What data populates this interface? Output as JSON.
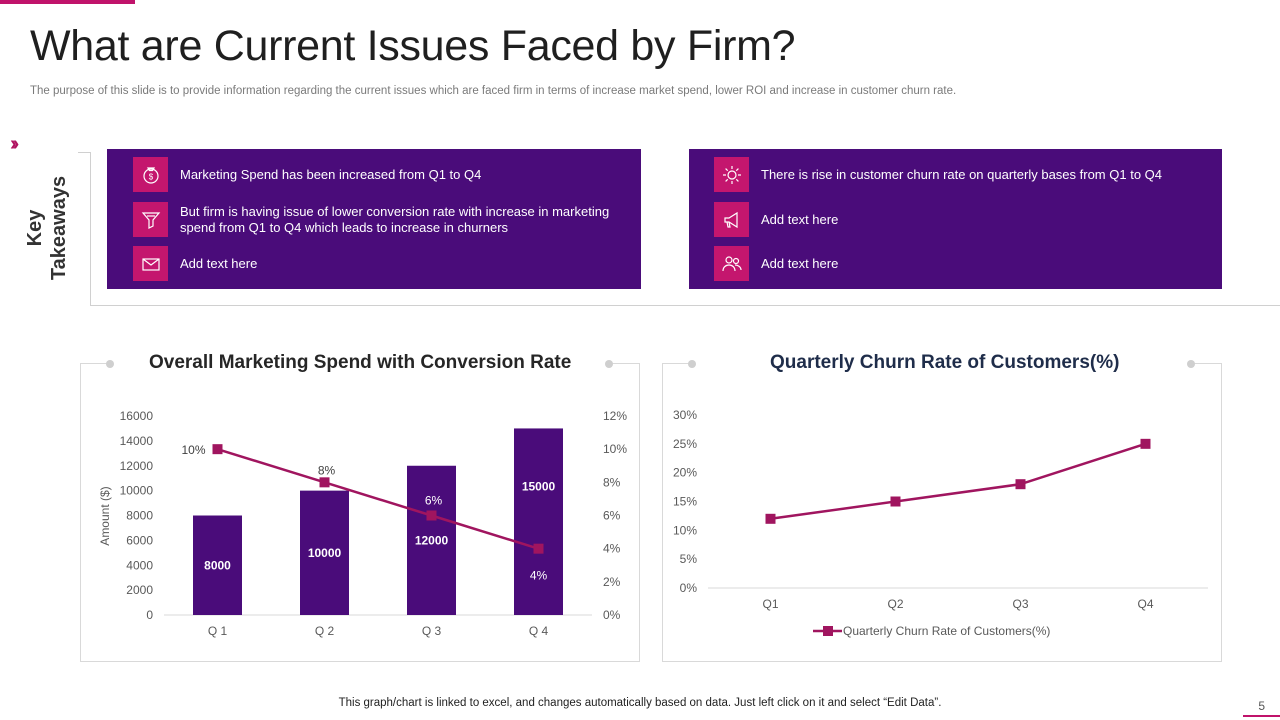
{
  "slide": {
    "title": "What are Current Issues Faced by Firm?",
    "subtitle": "The purpose of this slide is to provide information regarding the current issues which are faced firm in terms of increase market spend, lower ROI and increase in customer churn rate.",
    "key_takeaways_label_1": "Key",
    "key_takeaways_label_2": "Takeaways",
    "footer_note": "This graph/chart is linked to excel,  and changes automatically based on data. Just left click on it and select “Edit Data”.",
    "page_number": "5"
  },
  "left_panel": {
    "items": [
      {
        "icon": "money-bag-icon",
        "text": "Marketing Spend has been increased from Q1 to Q4"
      },
      {
        "icon": "funnel-icon",
        "text": "But firm is having issue of lower conversion  rate with increase in marketing spend from Q1 to Q4 which leads to increase in churners"
      },
      {
        "icon": "mail-icon",
        "text": "Add text here"
      }
    ]
  },
  "right_panel": {
    "items": [
      {
        "icon": "gear-icon",
        "text": "There is rise in customer churn rate on quarterly bases from Q1 to Q4"
      },
      {
        "icon": "megaphone-icon",
        "text": "Add text here"
      },
      {
        "icon": "users-icon",
        "text": "Add text here"
      }
    ]
  },
  "colors": {
    "accent": "#c4166e",
    "panel": "#4a0c7a",
    "bar": "#4a0c7a",
    "line": "#a0155f"
  },
  "chart_data": [
    {
      "type": "bar",
      "title": "Overall Marketing Spend with Conversion Rate",
      "categories": [
        "Q 1",
        "Q 2",
        "Q 3",
        "Q 4"
      ],
      "series": [
        {
          "name": "Amount ($)",
          "type": "bar",
          "values": [
            8000,
            10000,
            12000,
            15000
          ],
          "value_labels": [
            "8000",
            "10000",
            "12000",
            "15000"
          ]
        },
        {
          "name": "Conversion Rate",
          "type": "line",
          "axis": "secondary",
          "values": [
            10,
            8,
            6,
            4
          ],
          "value_labels": [
            "10%",
            "8%",
            "6%",
            "4%"
          ]
        }
      ],
      "ylabel": "Amount  ($)",
      "ylim": [
        0,
        16000
      ],
      "yticks": [
        "0",
        "2000",
        "4000",
        "6000",
        "8000",
        "10000",
        "12000",
        "14000",
        "16000"
      ],
      "y2lim": [
        0,
        12
      ],
      "y2ticks": [
        "0%",
        "2%",
        "4%",
        "6%",
        "8%",
        "10%",
        "12%"
      ],
      "grid": false
    },
    {
      "type": "line",
      "title": "Quarterly Churn Rate of Customers(%)",
      "categories": [
        "Q1",
        "Q2",
        "Q3",
        "Q4"
      ],
      "series": [
        {
          "name": "Quarterly Churn Rate of Customers(%)",
          "values": [
            12,
            15,
            18,
            25
          ]
        }
      ],
      "ylim": [
        0,
        30
      ],
      "yticks": [
        "0%",
        "5%",
        "10%",
        "15%",
        "20%",
        "25%",
        "30%"
      ],
      "legend": "bottom",
      "grid": false
    }
  ]
}
